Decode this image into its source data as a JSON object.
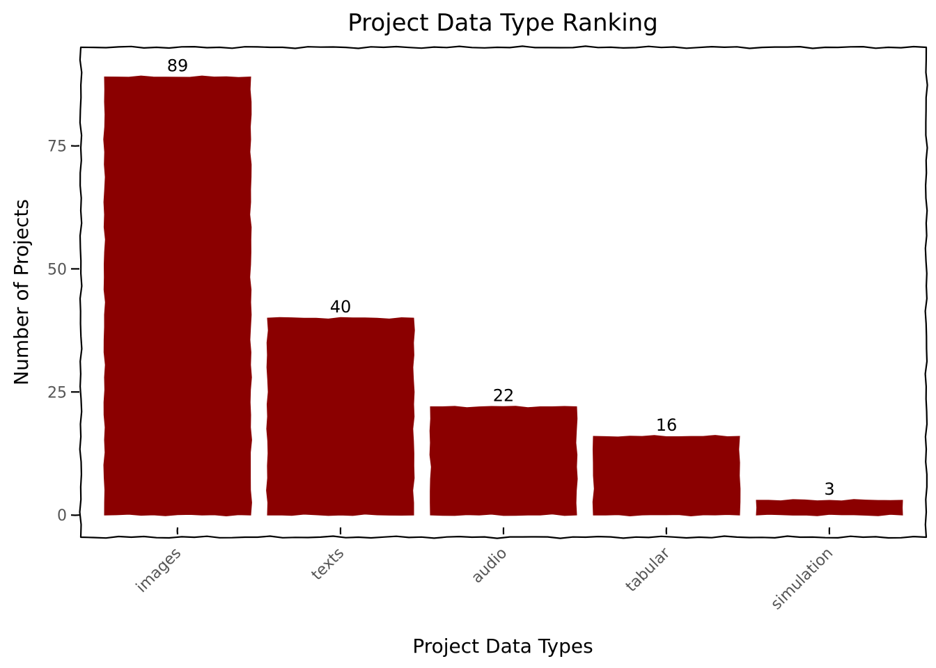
{
  "chart_data": {
    "type": "bar",
    "title": "Project Data Type Ranking",
    "xlabel": "Project Data Types",
    "ylabel": "Number of Projects",
    "categories": [
      "images",
      "texts",
      "audio",
      "tabular",
      "simulation"
    ],
    "values": [
      89,
      40,
      22,
      16,
      3
    ],
    "data_labels": [
      "89",
      "40",
      "22",
      "16",
      "3"
    ],
    "yticks": [
      0,
      25,
      50,
      75
    ],
    "ytick_labels": [
      "0",
      "25",
      "50",
      "75"
    ],
    "ylim": [
      -4.5,
      95
    ],
    "grid": false,
    "legend": "none",
    "bar_color": "#8b0000",
    "style": "hand-drawn (xkcd)"
  }
}
